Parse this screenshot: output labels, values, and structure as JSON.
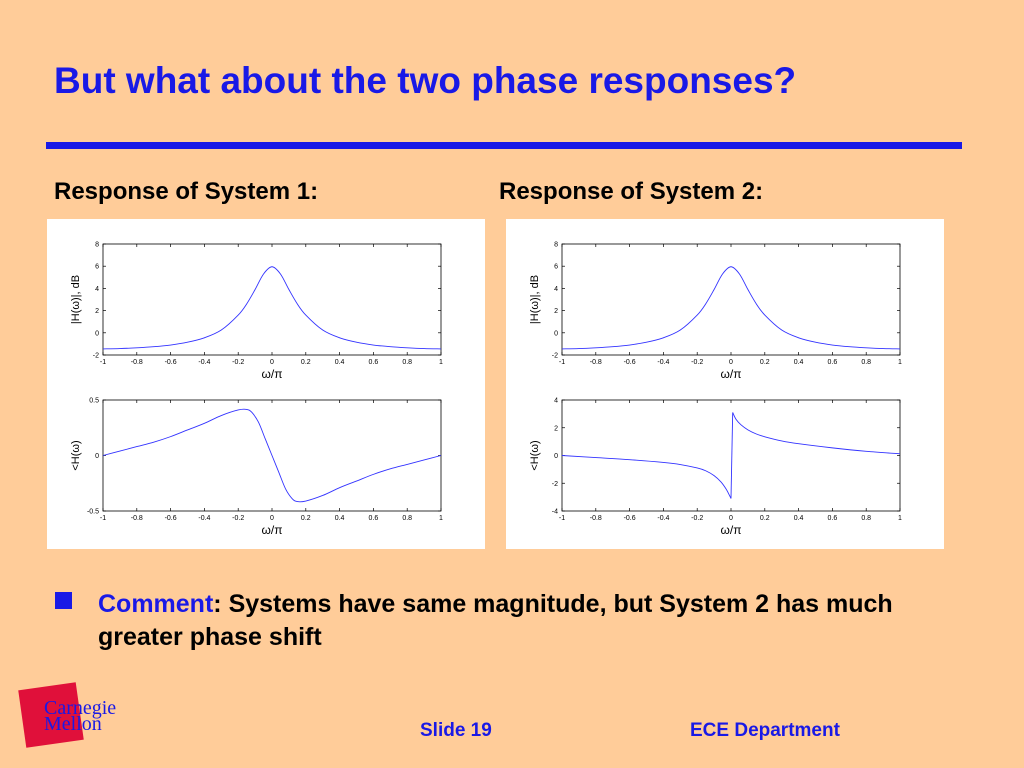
{
  "slide": {
    "title": "But what about the two phase responses?",
    "panel1_label": "Response of System 1:",
    "panel2_label": "Response of System 2:",
    "comment_keyword": "Comment",
    "comment_text": ": Systems have same magnitude, but System 2 has much greater phase shift",
    "logo_line1": "Carnegie",
    "logo_line2": "Mellon",
    "footer_slide": "Slide 19",
    "footer_dept": "ECE Department"
  },
  "colors": {
    "background": "#FFCC99",
    "accent": "#1919E6",
    "curve": "#3333FF",
    "logo_red": "#E0103A"
  },
  "chart_data": [
    {
      "type": "line",
      "system": 1,
      "xlabel": "ω/π",
      "ylabel": "|H(ω)|, dB",
      "xlim": [
        -1,
        1
      ],
      "ylim": [
        -2,
        8
      ],
      "xticks": [
        -1,
        -0.8,
        -0.6,
        -0.4,
        -0.2,
        0,
        0.2,
        0.4,
        0.6,
        0.8,
        1
      ],
      "yticks": [
        -2,
        0,
        2,
        4,
        6,
        8
      ],
      "x": [
        -1,
        -0.9,
        -0.8,
        -0.7,
        -0.6,
        -0.5,
        -0.4,
        -0.3,
        -0.2,
        -0.15,
        -0.1,
        -0.05,
        0,
        0.05,
        0.1,
        0.15,
        0.2,
        0.3,
        0.4,
        0.5,
        0.6,
        0.7,
        0.8,
        0.9,
        1
      ],
      "y": [
        -1.45,
        -1.42,
        -1.35,
        -1.25,
        -1.1,
        -0.85,
        -0.45,
        0.25,
        1.6,
        2.6,
        3.9,
        5.3,
        5.95,
        5.3,
        3.9,
        2.6,
        1.6,
        0.25,
        -0.45,
        -0.85,
        -1.1,
        -1.25,
        -1.35,
        -1.42,
        -1.45
      ]
    },
    {
      "type": "line",
      "system": 1,
      "xlabel": "ω/π",
      "ylabel": "<H(ω)",
      "xlim": [
        -1,
        1
      ],
      "ylim": [
        -0.5,
        0.5
      ],
      "xticks": [
        -1,
        -0.8,
        -0.6,
        -0.4,
        -0.2,
        0,
        0.2,
        0.4,
        0.6,
        0.8,
        1
      ],
      "yticks": [
        -0.5,
        0,
        0.5
      ],
      "x": [
        -1,
        -0.9,
        -0.8,
        -0.7,
        -0.6,
        -0.5,
        -0.4,
        -0.3,
        -0.2,
        -0.15,
        -0.12,
        -0.08,
        -0.04,
        0,
        0.04,
        0.08,
        0.12,
        0.15,
        0.2,
        0.3,
        0.4,
        0.5,
        0.6,
        0.7,
        0.8,
        0.9,
        1
      ],
      "y": [
        0,
        0.04,
        0.08,
        0.12,
        0.17,
        0.23,
        0.29,
        0.36,
        0.41,
        0.415,
        0.39,
        0.3,
        0.15,
        0,
        -0.15,
        -0.3,
        -0.39,
        -0.415,
        -0.41,
        -0.36,
        -0.29,
        -0.23,
        -0.17,
        -0.12,
        -0.08,
        -0.04,
        0
      ]
    },
    {
      "type": "line",
      "system": 2,
      "xlabel": "ω/π",
      "ylabel": "|H(ω)|, dB",
      "xlim": [
        -1,
        1
      ],
      "ylim": [
        -2,
        8
      ],
      "xticks": [
        -1,
        -0.8,
        -0.6,
        -0.4,
        -0.2,
        0,
        0.2,
        0.4,
        0.6,
        0.8,
        1
      ],
      "yticks": [
        -2,
        0,
        2,
        4,
        6,
        8
      ],
      "x": [
        -1,
        -0.9,
        -0.8,
        -0.7,
        -0.6,
        -0.5,
        -0.4,
        -0.3,
        -0.2,
        -0.15,
        -0.1,
        -0.05,
        0,
        0.05,
        0.1,
        0.15,
        0.2,
        0.3,
        0.4,
        0.5,
        0.6,
        0.7,
        0.8,
        0.9,
        1
      ],
      "y": [
        -1.45,
        -1.42,
        -1.35,
        -1.25,
        -1.1,
        -0.85,
        -0.45,
        0.25,
        1.6,
        2.6,
        3.9,
        5.3,
        5.95,
        5.3,
        3.9,
        2.6,
        1.6,
        0.25,
        -0.45,
        -0.85,
        -1.1,
        -1.25,
        -1.35,
        -1.42,
        -1.45
      ]
    },
    {
      "type": "line",
      "system": 2,
      "xlabel": "ω/π",
      "ylabel": "<H(ω)",
      "xlim": [
        -1,
        1
      ],
      "ylim": [
        -4,
        4
      ],
      "xticks": [
        -1,
        -0.8,
        -0.6,
        -0.4,
        -0.2,
        0,
        0.2,
        0.4,
        0.6,
        0.8,
        1
      ],
      "yticks": [
        -4,
        -2,
        0,
        2,
        4
      ],
      "x": [
        -1,
        -0.8,
        -0.6,
        -0.4,
        -0.3,
        -0.2,
        -0.15,
        -0.1,
        -0.06,
        -0.03,
        -0.01,
        0,
        0.01,
        0.03,
        0.06,
        0.1,
        0.15,
        0.2,
        0.3,
        0.4,
        0.6,
        0.8,
        1
      ],
      "y": [
        0,
        -0.15,
        -0.3,
        -0.5,
        -0.65,
        -0.9,
        -1.1,
        -1.45,
        -1.9,
        -2.4,
        -2.85,
        -3.1,
        3.1,
        2.6,
        2.2,
        1.85,
        1.55,
        1.35,
        1.05,
        0.85,
        0.55,
        0.3,
        0.12
      ]
    }
  ]
}
